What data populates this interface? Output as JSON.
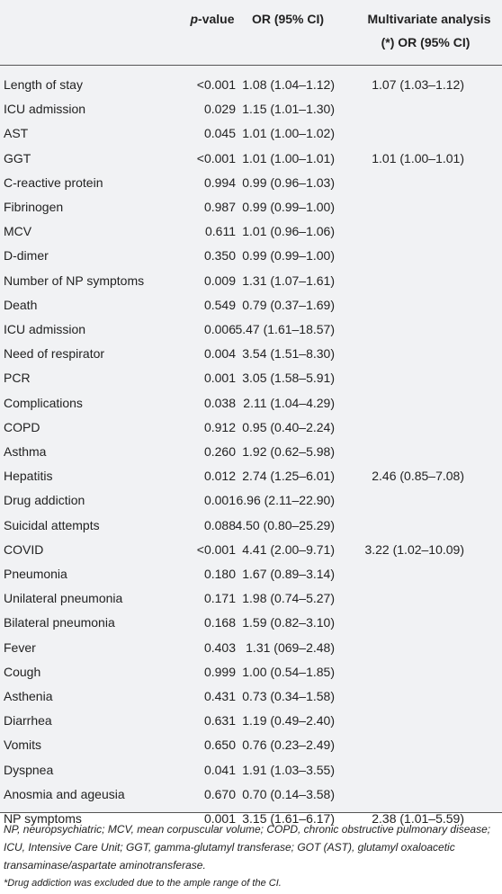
{
  "table": {
    "header": [
      "p-value",
      "OR (95% CI)",
      "Multivariate analysis",
      "(*) OR (95% CI)"
    ],
    "rows": [
      [
        "Length of stay",
        "<0.001",
        "1.08 (1.04–1.12)",
        "1.07 (1.03–1.12)"
      ],
      [
        "ICU admission",
        "0.029",
        "1.15 (1.01–1.30)",
        null
      ],
      [
        "AST",
        "0.045",
        "1.01 (1.00–1.02)",
        null
      ],
      [
        "GGT",
        "<0.001",
        "1.01 (1.00–1.01)",
        "1.01 (1.00–1.01)"
      ],
      [
        "C-reactive protein",
        "0.994",
        "0.99 (0.96–1.03)",
        null
      ],
      [
        "Fibrinogen",
        "0.987",
        "0.99 (0.99–1.00)",
        null
      ],
      [
        "MCV",
        "0.611",
        "1.01 (0.96–1.06)",
        null
      ],
      [
        "D-dimer",
        "0.350",
        "0.99 (0.99–1.00)",
        null
      ],
      [
        "Number of NP symptoms",
        "0.009",
        "1.31 (1.07–1.61)",
        null
      ],
      [
        "Death",
        "0.549",
        "0.79 (0.37–1.69)",
        null
      ],
      [
        "ICU admission",
        "0.006",
        "5.47 (1.61–18.57)",
        null
      ],
      [
        "Need of respirator",
        "0.004",
        "3.54 (1.51–8.30)",
        null
      ],
      [
        "PCR",
        "0.001",
        "3.05 (1.58–5.91)",
        null
      ],
      [
        "Complications",
        "0.038",
        "2.11 (1.04–4.29)",
        null
      ],
      [
        "COPD",
        "0.912",
        "0.95 (0.40–2.24)",
        null
      ],
      [
        "Asthma",
        "0.260",
        "1.92 (0.62–5.98)",
        null
      ],
      [
        "Hepatitis",
        "0.012",
        "2.74 (1.25–6.01)",
        "2.46 (0.85–7.08)"
      ],
      [
        "Drug addiction",
        "0.001",
        "6.96 (2.11–22.90)",
        null
      ],
      [
        "Suicidal attempts",
        "0.088",
        "4.50 (0.80–25.29)",
        null
      ],
      [
        "COVID",
        "<0.001",
        "4.41 (2.00–9.71)",
        "3.22 (1.02–10.09)"
      ],
      [
        "Pneumonia",
        "0.180",
        "1.67 (0.89–3.14)",
        null
      ],
      [
        "Unilateral pneumonia",
        "0.171",
        "1.98 (0.74–5.27)",
        null
      ],
      [
        "Bilateral pneumonia",
        "0.168",
        "1.59 (0.82–3.10)",
        null
      ],
      [
        "Fever",
        "0.403",
        "1.31 (069–2.48)",
        null
      ],
      [
        "Cough",
        "0.999",
        "1.00 (0.54–1.85)",
        null
      ],
      [
        "Asthenia",
        "0.431",
        "0.73 (0.34–1.58)",
        null
      ],
      [
        "Diarrhea",
        "0.631",
        "1.19 (0.49–2.40)",
        null
      ],
      [
        "Vomits",
        "0.650",
        "0.76 (0.23–2.49)",
        null
      ],
      [
        "Dyspnea",
        "0.041",
        "1.91 (1.03–3.55)",
        null
      ],
      [
        "Anosmia and ageusia",
        "0.670",
        "0.70 (0.14–3.58)",
        null
      ],
      [
        "NP symptoms",
        "0.001",
        "3.15 (1.61–6.17)",
        "2.38 (1.01–5.59)"
      ]
    ]
  },
  "footnotes": [
    "NP, neuropsychiatric; MCV, mean corpuscular volume; COPD, chronic obstructive pulmonary disease; ICU, Intensive Care Unit; GGT, gamma-glutamyl transferase; GOT (AST), glutamyl oxaloacetic transaminase/aspartate aminotransferase.",
    "*Drug addiction was excluded due to the ample range of the CI."
  ]
}
